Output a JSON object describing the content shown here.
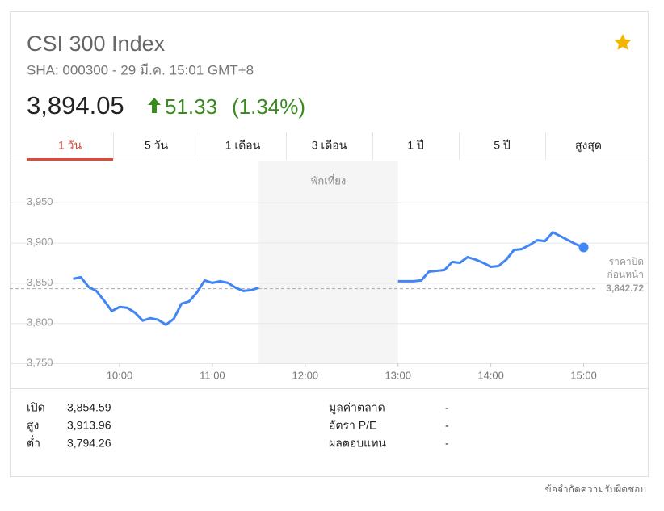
{
  "header": {
    "title": "CSI 300 Index",
    "subtitle": "SHA: 000300 - 29 มี.ค. 15:01 GMT+8",
    "price": "3,894.05",
    "change": "51.33",
    "change_pct": "(1.34%)"
  },
  "tabs": [
    "1 วัน",
    "5 วัน",
    "1 เดือน",
    "3 เดือน",
    "1 ปี",
    "5 ปี",
    "สูงสุด"
  ],
  "active_tab": 0,
  "chart_data": {
    "type": "line",
    "x": [
      "09:30",
      "09:35",
      "09:40",
      "09:45",
      "09:50",
      "09:55",
      "10:00",
      "10:05",
      "10:10",
      "10:15",
      "10:20",
      "10:25",
      "10:30",
      "10:35",
      "10:40",
      "10:45",
      "10:50",
      "10:55",
      "11:00",
      "11:05",
      "11:10",
      "11:15",
      "11:20",
      "11:25",
      "11:30",
      "13:00",
      "13:05",
      "13:10",
      "13:15",
      "13:20",
      "13:25",
      "13:30",
      "13:35",
      "13:40",
      "13:45",
      "13:50",
      "13:55",
      "14:00",
      "14:05",
      "14:10",
      "14:15",
      "14:20",
      "14:25",
      "14:30",
      "14:35",
      "14:40",
      "14:45",
      "14:50",
      "14:55",
      "15:00"
    ],
    "series": [
      {
        "color": "#4285f4",
        "values": [
          3855,
          3857,
          3845,
          3840,
          3828,
          3815,
          3820,
          3819,
          3813,
          3803,
          3806,
          3804,
          3798,
          3805,
          3824,
          3827,
          3838,
          3853,
          3850,
          3852,
          3850,
          3844,
          3840,
          3841,
          3844,
          3852,
          3852,
          3852,
          3853,
          3864,
          3865,
          3866,
          3876,
          3875,
          3882,
          3879,
          3875,
          3870,
          3871,
          3879,
          3891,
          3892,
          3897,
          3903,
          3902,
          3913,
          3908,
          3903,
          3898,
          3894.05
        ]
      }
    ],
    "xlim": [
      "08:49",
      "15:42"
    ],
    "xticks": [
      "10:00",
      "11:00",
      "12:00",
      "13:00",
      "14:00",
      "15:00"
    ],
    "ylim": [
      3750,
      4000
    ],
    "yticks": [
      {
        "value": 3750,
        "label": "3,750"
      },
      {
        "value": 3800,
        "label": "3,800"
      },
      {
        "value": 3850,
        "label": "3,850"
      },
      {
        "value": 3900,
        "label": "3,900"
      },
      {
        "value": 3950,
        "label": "3,950"
      }
    ],
    "grid": true,
    "break": {
      "label": "พักเที่ยง",
      "range": [
        "11:30",
        "13:00"
      ]
    },
    "prev_close": {
      "label_lines": [
        "ราคาปิด",
        "ก่อนหน้า"
      ],
      "value": 3842.72,
      "value_label": "3,842.72"
    }
  },
  "stats": {
    "left": [
      [
        "เปิด",
        "3,854.59"
      ],
      [
        "สูง",
        "3,913.96"
      ],
      [
        "ต่ำ",
        "3,794.26"
      ]
    ],
    "right": [
      [
        "มูลค่าตลาด",
        "-"
      ],
      [
        "อัตรา P/E",
        "-"
      ],
      [
        "ผลตอบแทน",
        "-"
      ]
    ]
  },
  "footer": "ข้อจำกัดความรับผิดชอบ"
}
